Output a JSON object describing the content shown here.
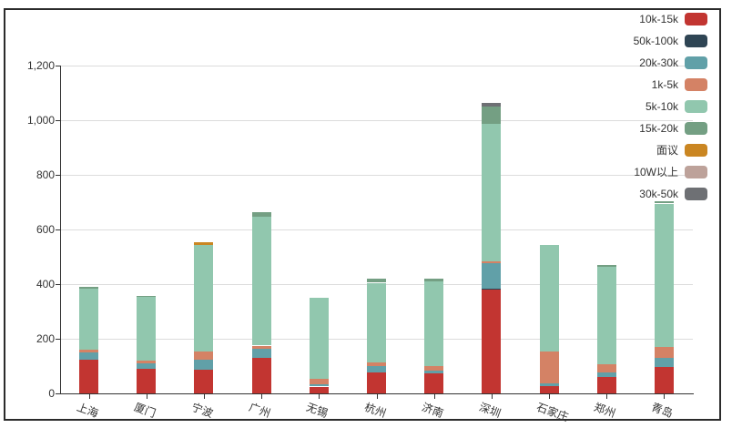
{
  "chart_data": {
    "type": "bar",
    "stacked": true,
    "title": "",
    "xlabel": "",
    "ylabel": "",
    "grid": true,
    "legend_position": "top-right",
    "ylim": [
      0,
      1200
    ],
    "ytick_interval": 200,
    "ytick_labels": [
      "0",
      "200",
      "400",
      "600",
      "800",
      "1,000",
      "1,200"
    ],
    "categories": [
      "上海",
      "厦门",
      "宁波",
      "广州",
      "无锡",
      "杭州",
      "济南",
      "深圳",
      "石家庄",
      "郑州",
      "青岛"
    ],
    "series": [
      {
        "name": "10k-15k",
        "color": "#c23531",
        "values": [
          123,
          90,
          88,
          130,
          25,
          76,
          73,
          381,
          27,
          60,
          98
        ]
      },
      {
        "name": "50k-100k",
        "color": "#2f4554",
        "values": [
          0,
          0,
          0,
          0,
          0,
          0,
          0,
          2,
          0,
          0,
          0
        ]
      },
      {
        "name": "20k-30k",
        "color": "#61a0a8",
        "values": [
          26,
          19,
          34,
          33,
          9,
          24,
          10,
          93,
          10,
          16,
          31
        ]
      },
      {
        "name": "1k-5k",
        "color": "#d48265",
        "values": [
          10,
          10,
          32,
          12,
          20,
          13,
          17,
          8,
          117,
          31,
          40
        ]
      },
      {
        "name": "5k-10k",
        "color": "#91c7ae",
        "values": [
          224,
          234,
          390,
          473,
          296,
          292,
          311,
          504,
          389,
          356,
          526
        ]
      },
      {
        "name": "15k-20k",
        "color": "#749f83",
        "values": [
          8,
          4,
          0,
          15,
          0,
          14,
          8,
          63,
          0,
          7,
          8
        ]
      },
      {
        "name": "面议",
        "color": "#ca8622",
        "values": [
          0,
          0,
          10,
          0,
          0,
          0,
          0,
          0,
          0,
          0,
          0
        ]
      },
      {
        "name": "10W以上",
        "color": "#bda29a",
        "values": [
          0,
          0,
          0,
          0,
          0,
          0,
          0,
          0,
          0,
          0,
          0
        ]
      },
      {
        "name": "30k-50k",
        "color": "#6e7074",
        "values": [
          0,
          0,
          0,
          0,
          0,
          0,
          0,
          11,
          0,
          0,
          0
        ]
      }
    ],
    "totals": [
      391,
      357,
      554,
      663,
      350,
      419,
      419,
      1062,
      543,
      470,
      703
    ]
  }
}
